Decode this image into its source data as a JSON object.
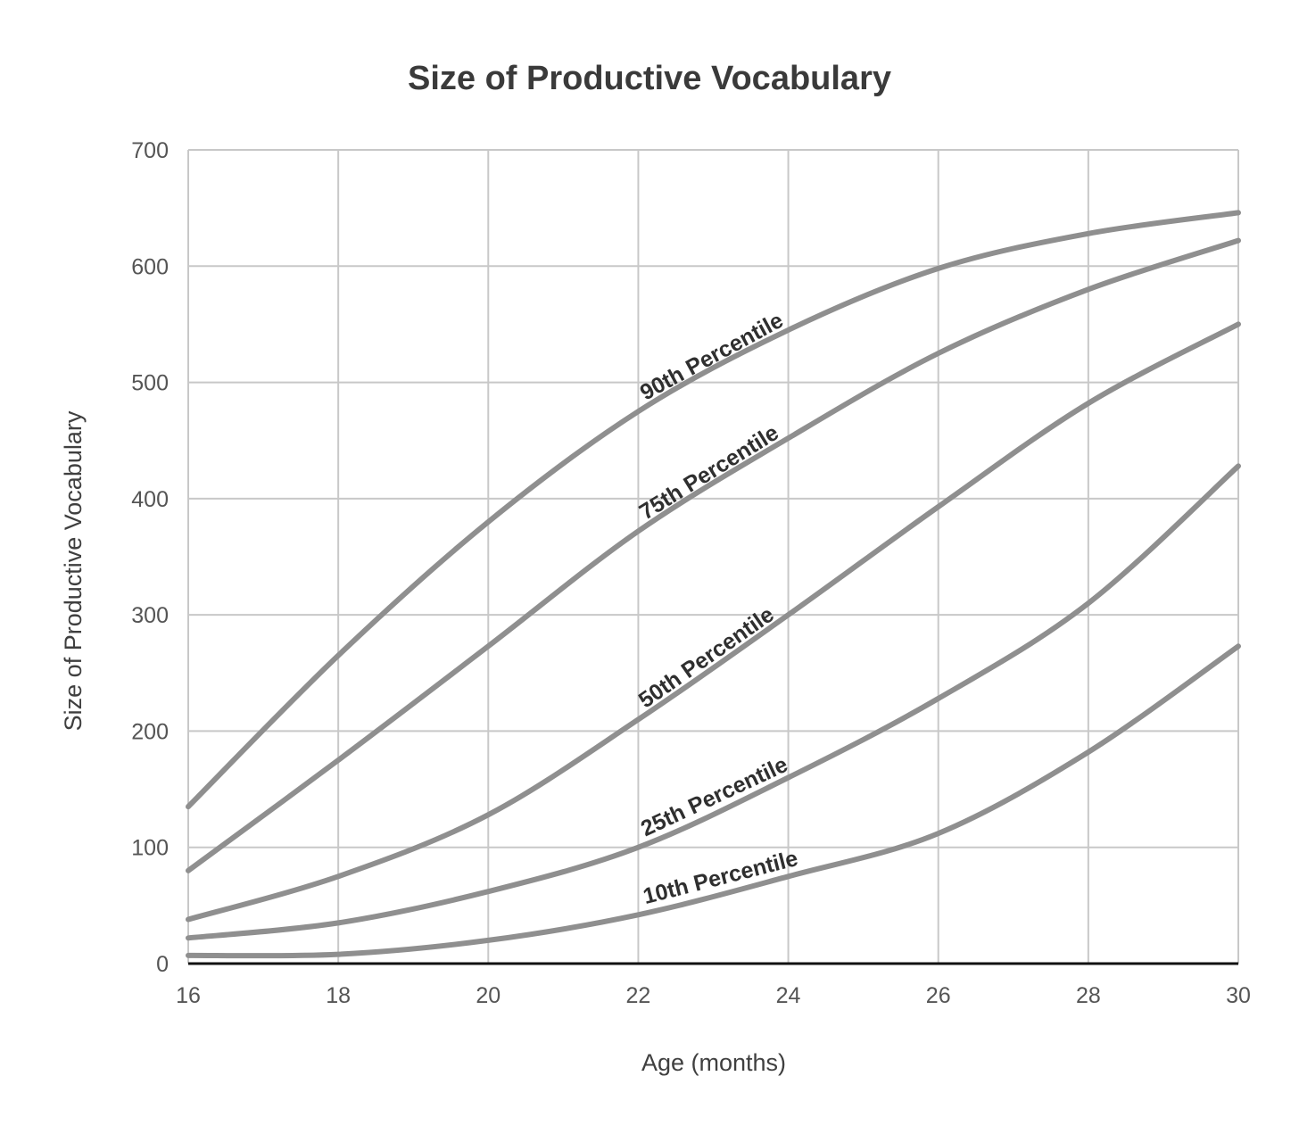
{
  "chart_data": {
    "type": "line",
    "title": "Size of Productive Vocabulary",
    "xlabel": "Age (months)",
    "ylabel": "Size of Productive Vocabulary",
    "xlim": [
      16,
      30
    ],
    "ylim": [
      0,
      700
    ],
    "xticks": [
      16,
      18,
      20,
      22,
      24,
      26,
      28,
      30
    ],
    "yticks": [
      0,
      100,
      200,
      300,
      400,
      500,
      600,
      700
    ],
    "grid": true,
    "legend": "none",
    "colors": {
      "line": "#8f8f8f",
      "grid": "#c8c8c8",
      "axis": "#111111"
    },
    "x": [
      16,
      18,
      20,
      22,
      24,
      26,
      28,
      30
    ],
    "series": [
      {
        "name": "90th Percentile",
        "values": [
          135,
          265,
          380,
          475,
          545,
          598,
          628,
          646
        ]
      },
      {
        "name": "75th Percentile",
        "values": [
          80,
          175,
          273,
          372,
          452,
          525,
          580,
          622
        ]
      },
      {
        "name": "50th Percentile",
        "values": [
          38,
          75,
          128,
          210,
          300,
          393,
          482,
          550
        ]
      },
      {
        "name": "25th Percentile",
        "values": [
          22,
          35,
          62,
          100,
          160,
          228,
          310,
          428
        ]
      },
      {
        "name": "10th Percentile",
        "values": [
          7,
          8,
          20,
          42,
          75,
          112,
          182,
          273
        ]
      }
    ]
  }
}
